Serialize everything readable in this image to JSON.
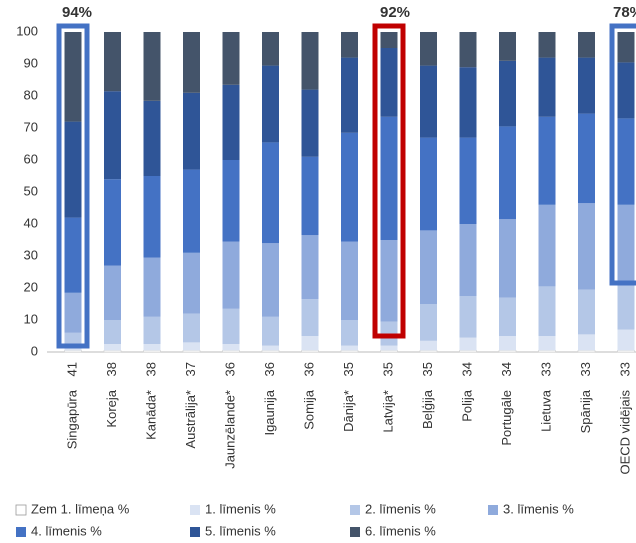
{
  "chart_data": {
    "type": "stacked_bar",
    "categories": [
      "Singapūra",
      "Koreja",
      "Kanāda*",
      "Austrālija*",
      "Jaunzēlande*",
      "Igaunija",
      "Somija",
      "Dānija*",
      "Latvija*",
      "Beļģija",
      "Polija",
      "Portugāle",
      "Lietuva",
      "Spānija",
      "OECD vidējais"
    ],
    "category_sublabels": [
      "41",
      "38",
      "38",
      "37",
      "36",
      "36",
      "36",
      "35",
      "35",
      "35",
      "34",
      "34",
      "33",
      "33",
      "33"
    ],
    "ylim": [
      0,
      100
    ],
    "yticks": [
      0,
      10,
      20,
      30,
      40,
      50,
      60,
      70,
      80,
      90,
      100
    ],
    "series": [
      {
        "name": "Zem 1. līmeņa %",
        "color": "#ffffff",
        "values": [
          0.5,
          0.5,
          0.5,
          0.5,
          0.5,
          0.5,
          0.5,
          0.5,
          0.5,
          0.5,
          0.5,
          0.5,
          0.5,
          0.5,
          0.5
        ]
      },
      {
        "name": "1. līmenis %",
        "color": "#dae3f3",
        "values": [
          1.5,
          2,
          2,
          2.5,
          2,
          1.5,
          4.5,
          1.5,
          1.5,
          3,
          4,
          4.5,
          4.5,
          5,
          6.5
        ]
      },
      {
        "name": "2. līmenis %",
        "color": "#b4c7e7",
        "values": [
          4,
          7.5,
          8.5,
          9,
          11,
          9,
          11.5,
          8,
          7.5,
          11.5,
          13,
          12,
          15.5,
          14,
          14.5
        ]
      },
      {
        "name": "3. līmenis %",
        "color": "#8faadc",
        "values": [
          12.5,
          17,
          18.5,
          19,
          21,
          23,
          20,
          24.5,
          25.5,
          23,
          22.5,
          24.5,
          25.5,
          27,
          24.5
        ]
      },
      {
        "name": "4. līmenis %",
        "color": "#4472c4",
        "values": [
          23.5,
          27,
          25.5,
          26,
          25.5,
          31.5,
          24.5,
          34,
          38.5,
          29,
          27,
          29,
          27.5,
          28,
          27
        ]
      },
      {
        "name": "5. līmenis %",
        "color": "#2f5597",
        "values": [
          30,
          27.5,
          23.5,
          24,
          23.5,
          24,
          21,
          23.5,
          21.5,
          22.5,
          22,
          20.5,
          18.5,
          17.5,
          17.5
        ]
      },
      {
        "name": "6. līmenis %",
        "color": "#44546a",
        "values": [
          28,
          18.5,
          21.5,
          19,
          16.5,
          10.5,
          18,
          8,
          5,
          10.5,
          11,
          9,
          8,
          8,
          9.5
        ]
      }
    ],
    "annotations": [
      {
        "text": "94%",
        "color": "#4472c4"
      },
      {
        "text": "92%",
        "color": "#c00000"
      },
      {
        "text": "78%",
        "color": "#4472c4"
      }
    ]
  }
}
